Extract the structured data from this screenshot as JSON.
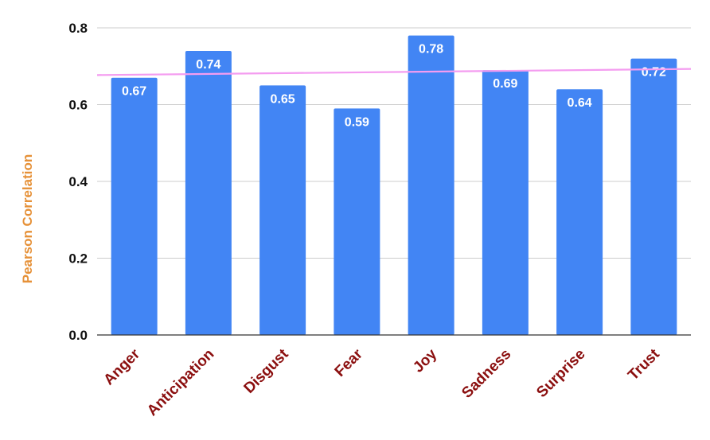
{
  "chart_data": {
    "type": "bar",
    "categories": [
      "Anger",
      "Anticipation",
      "Disgust",
      "Fear",
      "Joy",
      "Sadness",
      "Surprise",
      "Trust"
    ],
    "values": [
      0.67,
      0.74,
      0.65,
      0.59,
      0.78,
      0.69,
      0.64,
      0.72
    ],
    "data_labels": [
      "0.67",
      "0.74",
      "0.65",
      "0.59",
      "0.78",
      "0.69",
      "0.64",
      "0.72"
    ],
    "ylabel": "Pearson Correlation",
    "ylim": [
      0,
      0.8
    ],
    "yticks": [
      "0.0",
      "0.2",
      "0.4",
      "0.6",
      "0.8"
    ],
    "grid": true,
    "trendline": {
      "type": "linear",
      "start": 0.677,
      "end": 0.693
    },
    "colors": {
      "bar": "#4285f4",
      "trendline": "#f49cf0",
      "category_label": "#8b0f0f",
      "ylabel": "#e69138",
      "grid": "#cccccc",
      "axis": "#333333"
    }
  }
}
